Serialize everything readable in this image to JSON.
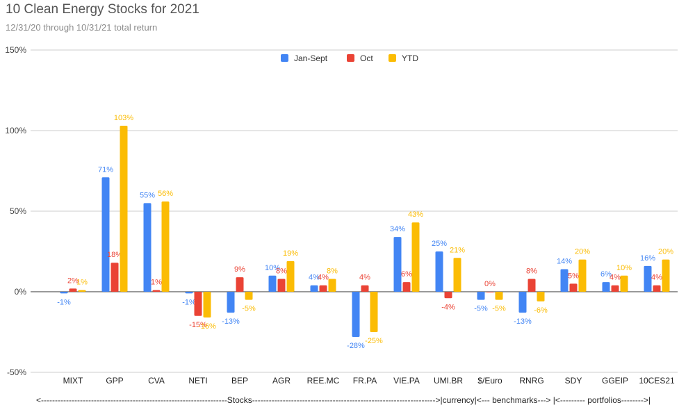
{
  "title": "10 Clean Energy Stocks for 2021",
  "subtitle": "12/31/20 through 10/31/21 total return",
  "footnote": "<-------------------------------------------------------------------Stocks------------------------------------------------------------------>|currency|<--- benchmarks---> |<--------- portfolios-------->|",
  "colors": {
    "jan_sept": "#4285f4",
    "oct": "#ea4335",
    "ytd": "#fbbc04"
  },
  "chart_data": {
    "type": "bar",
    "categories": [
      "MIXT",
      "GPP",
      "CVA",
      "NETI",
      "BEP",
      "AGR",
      "REE.MC",
      "FR.PA",
      "VIE.PA",
      "UMI.BR",
      "$/Euro",
      "RNRG",
      "SDY",
      "GGEIP",
      "10CES21"
    ],
    "series": [
      {
        "name": "Jan-Sept",
        "color": "#4285f4",
        "values": [
          -1,
          71,
          55,
          -1,
          -13,
          10,
          4,
          -28,
          34,
          25,
          -5,
          -13,
          14,
          6,
          16
        ],
        "labels": [
          "-1%",
          "71%",
          "55%",
          "-1%",
          "-13%",
          "10%",
          "4%",
          "-28%",
          "34%",
          "25%",
          "-5%",
          "-13%",
          "14%",
          "6%",
          "16%"
        ]
      },
      {
        "name": "Oct",
        "color": "#ea4335",
        "values": [
          2,
          18,
          1,
          -15,
          9,
          8,
          4,
          4,
          6,
          -4,
          0,
          8,
          5,
          4,
          4
        ],
        "labels": [
          "2%",
          "18%",
          "1%",
          "-15%",
          "9%",
          "8%",
          "4%",
          "4%",
          "6%",
          "-4%",
          "0%",
          "8%",
          "5%",
          "4%",
          "4%"
        ]
      },
      {
        "name": "YTD",
        "color": "#fbbc04",
        "values": [
          1,
          103,
          56,
          -16,
          -5,
          19,
          8,
          -25,
          43,
          21,
          -5,
          -6,
          20,
          10,
          20
        ],
        "labels": [
          "1%",
          "103%",
          "56%",
          "-16%",
          "-5%",
          "19%",
          "8%",
          "-25%",
          "43%",
          "21%",
          "-5%",
          "-6%",
          "20%",
          "10%",
          "20%"
        ]
      }
    ],
    "ylim": [
      -50,
      150
    ],
    "yticks": [
      150,
      100,
      50,
      0,
      -50
    ],
    "ytick_labels": [
      "150%",
      "100%",
      "50%",
      "0%",
      "-50%"
    ],
    "legend_position": "top-center",
    "grid": true
  }
}
